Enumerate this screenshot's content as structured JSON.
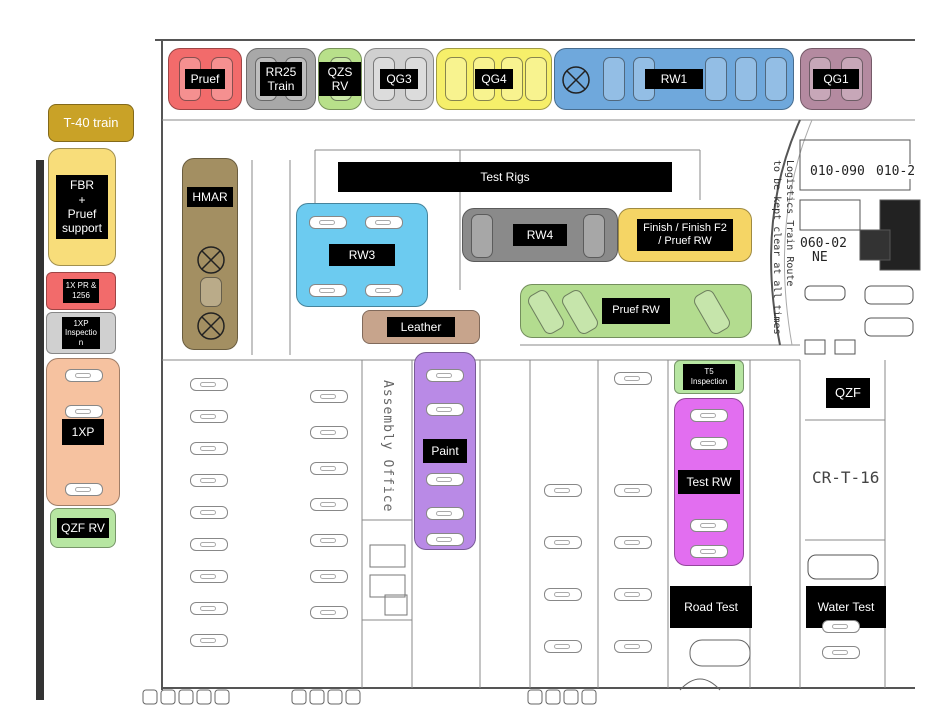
{
  "plan": {
    "labels": {
      "pruef": "Pruef",
      "rr25": "RR25\nTrain",
      "qzs_rv": "QZS RV",
      "qg3": "QG3",
      "qg4": "QG4",
      "rw1": "RW1",
      "qg1": "QG1",
      "t40": "T-40 train",
      "fbr": "FBR\n+\nPruef\nsupport",
      "hmar": "HMAR",
      "test_rigs": "Test Rigs",
      "rw3": "RW3",
      "rw4": "RW4",
      "finish": "Finish / Finish F2\n/ Pruef RW",
      "pruef_rw": "Pruef RW",
      "leather": "Leather",
      "x1pr": "1X PR &\n1256",
      "x1p_insp": "1XP\nInspectio\nn",
      "x1p": "1XP",
      "qzf_rv": "QZF RV",
      "paint": "Paint",
      "t5": "T5\nInspection",
      "test_rw": "Test RW",
      "road_test": "Road Test",
      "water_test": "Water Test",
      "qzf": "QZF",
      "cr_t16": "CR-T-16",
      "assembly_office": "Assembly Office",
      "logistics": "Logistics Train Route\nto be kept clear at all times",
      "code1": "010-090",
      "code2": "010-2",
      "code3": "060-02",
      "code4": "NE"
    },
    "colors": {
      "red": "#f26b6b",
      "grey": "#a8a8a8",
      "light_grey": "#d0d0d0",
      "lime": "#b8e08a",
      "yellow": "#f6ef6a",
      "blue": "#6fa8dc",
      "mauve": "#b48aa0",
      "gold": "#c9a227",
      "pale_yellow": "#f8dd7a",
      "olive": "#a38f62",
      "sky": "#6ccbf0",
      "dark_grey": "#8a8a8a",
      "sand": "#f5d565",
      "green": "#b3dc8f",
      "brown": "#c7a48c",
      "peach": "#f6c2a0",
      "purple": "#b98ae6",
      "magenta": "#e26ef0",
      "light_green": "#b7e6a2"
    }
  }
}
